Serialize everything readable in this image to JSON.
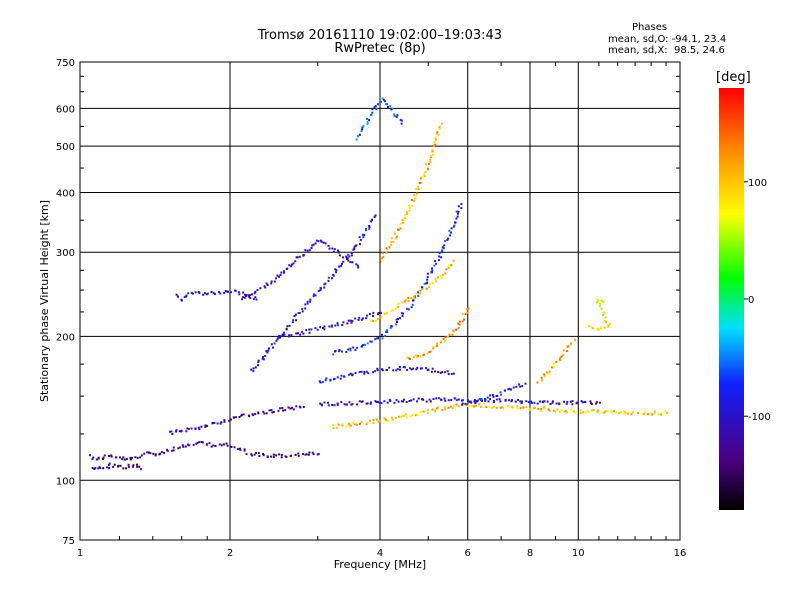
{
  "chart_data": {
    "type": "scatter",
    "title": "Tromsø 20161110 19:02:00–19:03:43",
    "subtitle": "RwPretec (8p)",
    "xlabel": "Frequency [MHz]",
    "ylabel": "Stationary phase Virtual Height [km]",
    "x_scale": "log",
    "y_scale": "log",
    "xlim": [
      1,
      16
    ],
    "ylim": [
      75,
      750
    ],
    "x_ticks": [
      1,
      2,
      4,
      6,
      8,
      10,
      16
    ],
    "y_ticks": [
      75,
      100,
      200,
      300,
      400,
      500,
      600,
      750
    ],
    "grid": true,
    "colorbar": {
      "label": "[deg]",
      "range": [
        -180,
        180
      ],
      "ticks": [
        -100,
        0,
        100
      ]
    },
    "stats": {
      "heading": "Phases",
      "o_line": "mean, sd,O: -94.1, 23.4",
      "x_line": "mean, sd,X:  98.5, 24.6"
    },
    "traces": [
      {
        "phase": -130,
        "points": [
          [
            1.04,
            113
          ],
          [
            1.08,
            111
          ],
          [
            1.12,
            113
          ],
          [
            1.18,
            112
          ],
          [
            1.25,
            111
          ],
          [
            1.3,
            112
          ],
          [
            1.36,
            115
          ],
          [
            1.42,
            114
          ],
          [
            1.5,
            116
          ],
          [
            1.58,
            118
          ],
          [
            1.66,
            119
          ],
          [
            1.75,
            120
          ],
          [
            1.85,
            119
          ],
          [
            1.95,
            119
          ],
          [
            2.05,
            117
          ],
          [
            2.2,
            114
          ],
          [
            2.4,
            113
          ],
          [
            2.6,
            113
          ],
          [
            2.8,
            114
          ],
          [
            3.0,
            114
          ]
        ]
      },
      {
        "phase": -130,
        "points": [
          [
            1.05,
            107
          ],
          [
            1.1,
            106
          ],
          [
            1.15,
            108
          ],
          [
            1.22,
            107
          ],
          [
            1.28,
            108
          ],
          [
            1.32,
            106
          ]
        ]
      },
      {
        "phase": -120,
        "points": [
          [
            1.5,
            126
          ],
          [
            1.62,
            128
          ],
          [
            1.75,
            130
          ],
          [
            1.9,
            133
          ],
          [
            2.05,
            136
          ],
          [
            2.2,
            138
          ],
          [
            2.4,
            140
          ],
          [
            2.6,
            142
          ],
          [
            2.8,
            143
          ]
        ]
      },
      {
        "phase": -100,
        "points": [
          [
            3.0,
            162
          ],
          [
            3.3,
            165
          ],
          [
            3.6,
            168
          ],
          [
            4.0,
            171
          ],
          [
            4.4,
            172
          ],
          [
            4.8,
            172
          ],
          [
            5.2,
            170
          ],
          [
            5.6,
            168
          ]
        ]
      },
      {
        "phase": -80,
        "points": [
          [
            3.2,
            185
          ],
          [
            3.6,
            190
          ],
          [
            4.0,
            200
          ],
          [
            4.3,
            215
          ],
          [
            4.6,
            235
          ],
          [
            4.9,
            260
          ],
          [
            5.2,
            290
          ],
          [
            5.5,
            330
          ],
          [
            5.8,
            380
          ]
        ]
      },
      {
        "phase": -95,
        "points": [
          [
            2.2,
            170
          ],
          [
            2.4,
            190
          ],
          [
            2.7,
            220
          ],
          [
            3.0,
            250
          ],
          [
            3.3,
            280
          ],
          [
            3.5,
            300
          ],
          [
            3.7,
            330
          ],
          [
            3.9,
            360
          ]
        ]
      },
      {
        "phase": -110,
        "points": [
          [
            2.1,
            240
          ],
          [
            2.4,
            260
          ],
          [
            2.6,
            280
          ],
          [
            2.8,
            300
          ],
          [
            3.0,
            320
          ],
          [
            3.3,
            300
          ],
          [
            3.6,
            280
          ]
        ]
      },
      {
        "phase": -100,
        "points": [
          [
            2.5,
            200
          ],
          [
            2.8,
            205
          ],
          [
            3.1,
            210
          ],
          [
            3.4,
            215
          ],
          [
            3.7,
            220
          ],
          [
            4.0,
            225
          ]
        ]
      },
      {
        "phase": 100,
        "points": [
          [
            3.8,
            215
          ],
          [
            4.1,
            225
          ],
          [
            4.4,
            235
          ],
          [
            4.7,
            245
          ],
          [
            5.0,
            255
          ],
          [
            5.3,
            270
          ],
          [
            5.6,
            290
          ]
        ]
      },
      {
        "phase": 110,
        "points": [
          [
            4.0,
            290
          ],
          [
            4.3,
            330
          ],
          [
            4.6,
            380
          ],
          [
            4.9,
            440
          ],
          [
            5.1,
            500
          ],
          [
            5.3,
            560
          ]
        ]
      },
      {
        "phase": 120,
        "points": [
          [
            4.5,
            180
          ],
          [
            4.9,
            185
          ],
          [
            5.3,
            195
          ],
          [
            5.7,
            210
          ],
          [
            6.0,
            230
          ]
        ]
      },
      {
        "phase": 100,
        "points": [
          [
            3.2,
            130
          ],
          [
            3.6,
            132
          ],
          [
            4.0,
            134
          ],
          [
            4.5,
            137
          ],
          [
            5.0,
            140
          ],
          [
            5.5,
            143
          ],
          [
            6.0,
            145
          ],
          [
            7.0,
            143
          ],
          [
            8.0,
            142
          ],
          [
            9.0,
            141
          ],
          [
            10.0,
            140
          ],
          [
            11.5,
            140
          ],
          [
            13.0,
            139
          ],
          [
            15.0,
            139
          ]
        ]
      },
      {
        "phase": -90,
        "points": [
          [
            5.8,
            145
          ],
          [
            6.2,
            147
          ],
          [
            6.6,
            150
          ],
          [
            7.0,
            153
          ],
          [
            7.4,
            157
          ],
          [
            7.8,
            160
          ]
        ]
      },
      {
        "phase": -100,
        "points": [
          [
            3.0,
            145
          ],
          [
            3.6,
            146
          ],
          [
            4.2,
            147
          ],
          [
            5.0,
            148
          ],
          [
            6.0,
            148
          ],
          [
            7.5,
            147
          ],
          [
            9.0,
            146
          ],
          [
            11.0,
            146
          ]
        ]
      },
      {
        "phase": 110,
        "points": [
          [
            8.3,
            160
          ],
          [
            8.6,
            168
          ],
          [
            8.9,
            175
          ],
          [
            9.2,
            182
          ],
          [
            9.5,
            190
          ],
          [
            9.8,
            198
          ]
        ]
      },
      {
        "phase": -100,
        "points": [
          [
            1.55,
            245
          ],
          [
            1.6,
            240
          ],
          [
            1.65,
            246
          ],
          [
            2.05,
            250
          ],
          [
            2.15,
            245
          ],
          [
            2.25,
            240
          ]
        ]
      },
      {
        "phase": -70,
        "points": [
          [
            3.6,
            520
          ],
          [
            3.8,
            580
          ],
          [
            4.0,
            630
          ],
          [
            4.2,
            600
          ],
          [
            4.4,
            560
          ]
        ]
      },
      {
        "phase": 80,
        "points": [
          [
            10.5,
            210
          ],
          [
            11.0,
            208
          ],
          [
            11.5,
            212
          ],
          [
            10.8,
            240
          ],
          [
            11.2,
            238
          ]
        ]
      }
    ]
  }
}
